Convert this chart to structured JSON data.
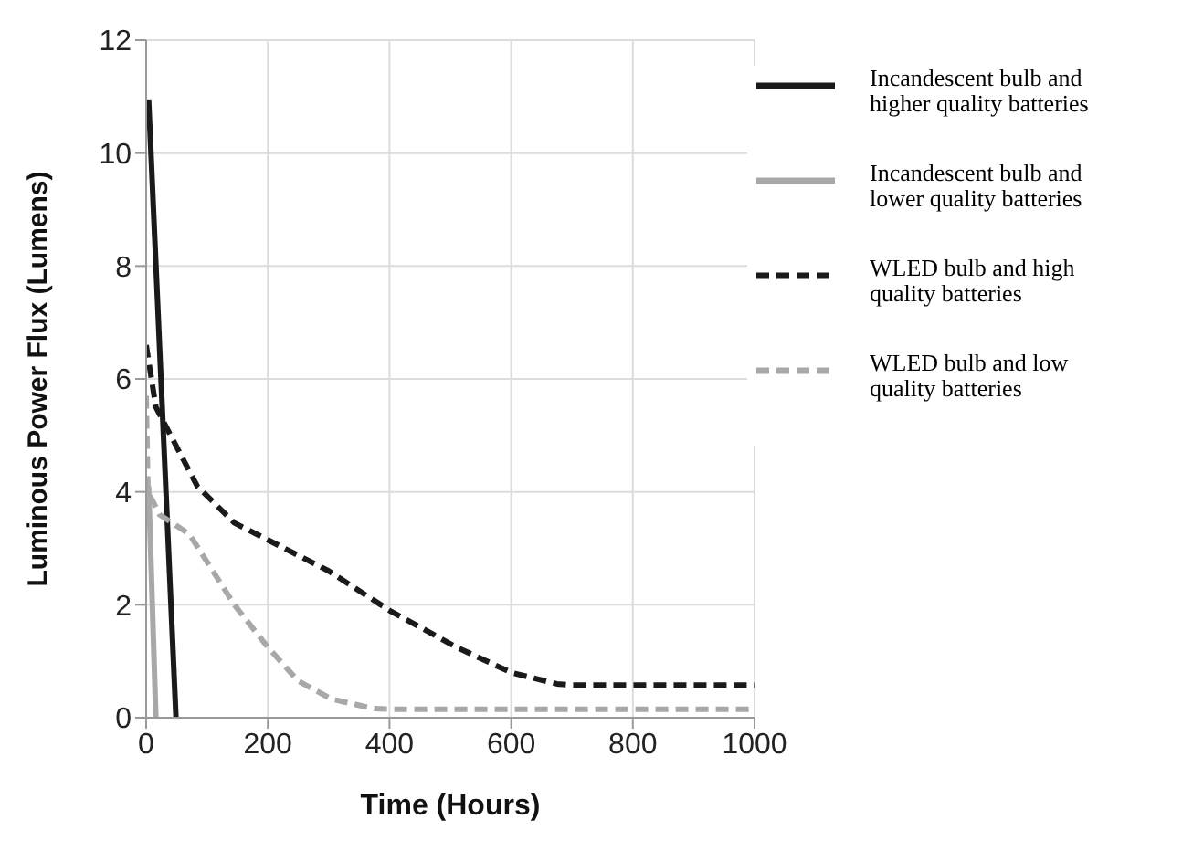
{
  "chart_data": {
    "type": "line",
    "xlabel": "Time (Hours)",
    "ylabel": "Luminous Power Flux (Lumens)",
    "xlim": [
      0,
      1000
    ],
    "xticks": [
      0,
      200,
      400,
      600,
      800,
      1000
    ],
    "ylim": [
      0,
      12
    ],
    "yticks": [
      0,
      2,
      4,
      6,
      8,
      10,
      12
    ],
    "grid": true,
    "legend": "top right",
    "marker": "none",
    "series": [
      {
        "name": "Incandescent bulb and higher quality batteries",
        "color": "#1a1a1a",
        "line_style": "solid",
        "x": [
          4,
          49
        ],
        "values": [
          10.95,
          0
        ]
      },
      {
        "name": "Incandescent bulb and lower quality batteries",
        "color": "#a8a8a8",
        "line_style": "solid",
        "x": [
          4,
          16
        ],
        "values": [
          4.1,
          0
        ]
      },
      {
        "name": "WLED bulb and high quality batteries",
        "color": "#1a1a1a",
        "line_style": "dashed",
        "x": [
          0,
          16,
          84,
          145,
          200,
          300,
          400,
          510,
          600,
          675,
          700,
          800,
          1000
        ],
        "values": [
          6.6,
          5.5,
          4.1,
          3.45,
          3.15,
          2.6,
          1.9,
          1.25,
          0.8,
          0.6,
          0.58,
          0.58,
          0.58
        ]
      },
      {
        "name": "WLED bulb and low quality batteries",
        "color": "#a8a8a8",
        "line_style": "dashed",
        "x": [
          0,
          3,
          22,
          71,
          145,
          200,
          250,
          305,
          375,
          400,
          1000
        ],
        "values": [
          5.7,
          4.0,
          3.6,
          3.25,
          2.0,
          1.25,
          0.65,
          0.33,
          0.16,
          0.15,
          0.15
        ]
      }
    ]
  }
}
